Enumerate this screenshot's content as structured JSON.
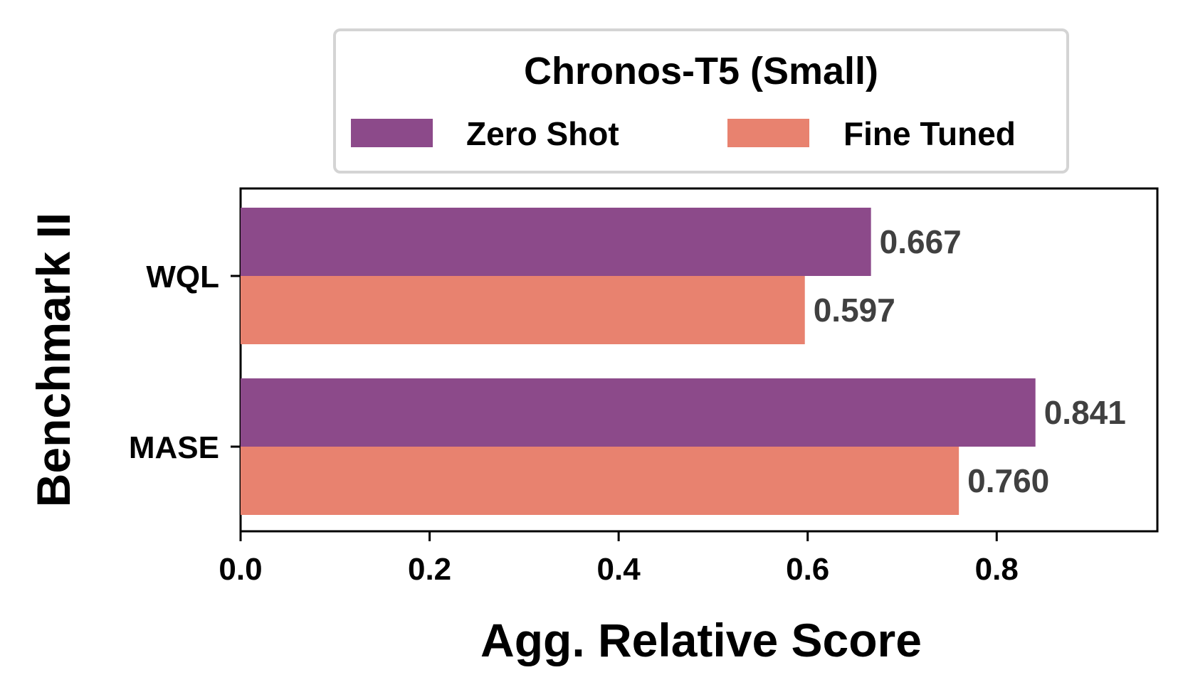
{
  "chart_data": {
    "type": "bar",
    "orientation": "horizontal",
    "categories": [
      "WQL",
      "MASE"
    ],
    "series": [
      {
        "name": "Zero Shot",
        "color": "#8c4a8a",
        "values": [
          0.667,
          0.841
        ],
        "labels": [
          "0.667",
          "0.841"
        ]
      },
      {
        "name": "Fine Tuned",
        "color": "#e8826f",
        "values": [
          0.597,
          0.76
        ],
        "labels": [
          "0.597",
          "0.760"
        ]
      }
    ],
    "legend_title": "Chronos-T5 (Small)",
    "legend_position": "top-center",
    "xlabel": "Agg. Relative Score",
    "ylabel": "Benchmark II",
    "xlim": [
      0,
      0.97
    ],
    "xticks": [
      0.0,
      0.2,
      0.4,
      0.6,
      0.8
    ],
    "xtick_labels": [
      "0.0",
      "0.2",
      "0.4",
      "0.6",
      "0.8"
    ],
    "grid": false
  }
}
